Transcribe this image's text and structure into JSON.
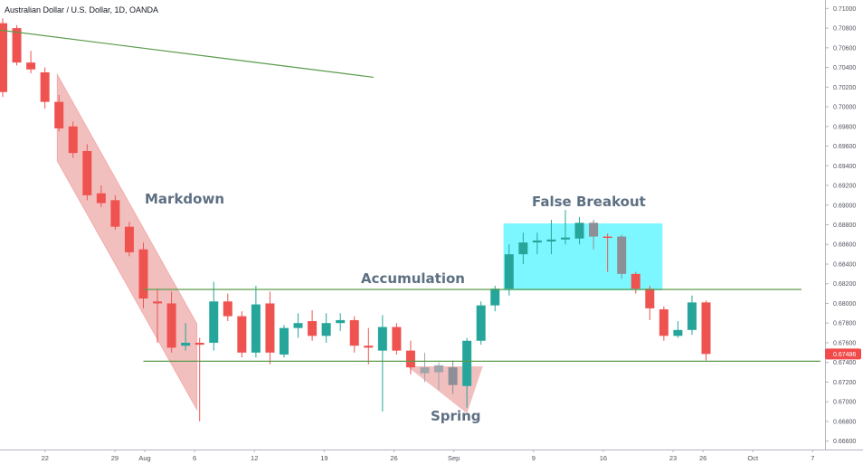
{
  "header": {
    "title": "Australian Dollar / U.S. Dollar, 1D, OANDA"
  },
  "chart_data": {
    "type": "candlestick",
    "title": "Australian Dollar / U.S. Dollar, 1D, OANDA",
    "ylim": [
      0.6656,
      0.7104
    ],
    "y_ticks": [
      "0.71000",
      "0.70800",
      "0.70600",
      "0.70400",
      "0.70200",
      "0.70000",
      "0.69800",
      "0.69600",
      "0.69400",
      "0.69200",
      "0.69000",
      "0.68800",
      "0.68600",
      "0.68400",
      "0.68200",
      "0.68000",
      "0.67800",
      "0.67600",
      "0.67400",
      "0.67200",
      "0.67000",
      "0.66800",
      "0.66600"
    ],
    "x_ticks": [
      {
        "label": "22",
        "day": -10
      },
      {
        "label": "29",
        "day": -3
      },
      {
        "label": "Aug",
        "day": 0
      },
      {
        "label": "6",
        "day": 5
      },
      {
        "label": "12",
        "day": 11
      },
      {
        "label": "19",
        "day": 18
      },
      {
        "label": "26",
        "day": 25
      },
      {
        "label": "Sep",
        "day": 31
      },
      {
        "label": "9",
        "day": 39
      },
      {
        "label": "16",
        "day": 46
      },
      {
        "label": "23",
        "day": 53
      },
      {
        "label": "26",
        "day": 56
      },
      {
        "label": "Oct",
        "day": 61
      },
      {
        "label": "7",
        "day": 67
      }
    ],
    "candles": [
      {
        "o": 0.7085,
        "h": 0.709,
        "l": 0.701,
        "c": 0.7015
      },
      {
        "o": 0.708,
        "h": 0.7083,
        "l": 0.7042,
        "c": 0.7045
      },
      {
        "o": 0.7045,
        "h": 0.7057,
        "l": 0.7034,
        "c": 0.7038
      },
      {
        "o": 0.7035,
        "h": 0.704,
        "l": 0.6998,
        "c": 0.7005
      },
      {
        "o": 0.7005,
        "h": 0.7012,
        "l": 0.6975,
        "c": 0.6978
      },
      {
        "o": 0.698,
        "h": 0.6985,
        "l": 0.6948,
        "c": 0.6953
      },
      {
        "o": 0.6955,
        "h": 0.6962,
        "l": 0.6905,
        "c": 0.691
      },
      {
        "o": 0.6912,
        "h": 0.692,
        "l": 0.6898,
        "c": 0.6902
      },
      {
        "o": 0.6905,
        "h": 0.691,
        "l": 0.6875,
        "c": 0.6878
      },
      {
        "o": 0.6878,
        "h": 0.6883,
        "l": 0.6848,
        "c": 0.6852
      },
      {
        "o": 0.6855,
        "h": 0.6862,
        "l": 0.6795,
        "c": 0.6805
      },
      {
        "o": 0.6802,
        "h": 0.6815,
        "l": 0.676,
        "c": 0.68
      },
      {
        "o": 0.68,
        "h": 0.6812,
        "l": 0.675,
        "c": 0.6755
      },
      {
        "o": 0.6757,
        "h": 0.678,
        "l": 0.6752,
        "c": 0.676
      },
      {
        "o": 0.676,
        "h": 0.6765,
        "l": 0.668,
        "c": 0.6758
      },
      {
        "o": 0.676,
        "h": 0.6822,
        "l": 0.6752,
        "c": 0.6802
      },
      {
        "o": 0.6802,
        "h": 0.681,
        "l": 0.6782,
        "c": 0.6787
      },
      {
        "o": 0.6787,
        "h": 0.6792,
        "l": 0.6745,
        "c": 0.675
      },
      {
        "o": 0.675,
        "h": 0.6818,
        "l": 0.6745,
        "c": 0.6799
      },
      {
        "o": 0.68,
        "h": 0.6812,
        "l": 0.6738,
        "c": 0.675
      },
      {
        "o": 0.6748,
        "h": 0.6778,
        "l": 0.6745,
        "c": 0.6775
      },
      {
        "o": 0.6775,
        "h": 0.679,
        "l": 0.6765,
        "c": 0.678
      },
      {
        "o": 0.6782,
        "h": 0.6793,
        "l": 0.6762,
        "c": 0.6767
      },
      {
        "o": 0.6767,
        "h": 0.679,
        "l": 0.676,
        "c": 0.678
      },
      {
        "o": 0.678,
        "h": 0.679,
        "l": 0.6772,
        "c": 0.6783
      },
      {
        "o": 0.6783,
        "h": 0.6787,
        "l": 0.675,
        "c": 0.6757
      },
      {
        "o": 0.6757,
        "h": 0.6775,
        "l": 0.6738,
        "c": 0.6755
      },
      {
        "o": 0.6752,
        "h": 0.6788,
        "l": 0.669,
        "c": 0.6776
      },
      {
        "o": 0.6776,
        "h": 0.678,
        "l": 0.6748,
        "c": 0.6752
      },
      {
        "o": 0.6752,
        "h": 0.6762,
        "l": 0.6728,
        "c": 0.6735
      },
      {
        "o": 0.6735,
        "h": 0.675,
        "l": 0.672,
        "c": 0.6729
      },
      {
        "o": 0.673,
        "h": 0.674,
        "l": 0.6712,
        "c": 0.6737
      },
      {
        "o": 0.6735,
        "h": 0.6742,
        "l": 0.6708,
        "c": 0.6717
      },
      {
        "o": 0.6716,
        "h": 0.6765,
        "l": 0.6694,
        "c": 0.6762
      },
      {
        "o": 0.6762,
        "h": 0.6802,
        "l": 0.6758,
        "c": 0.6798
      },
      {
        "o": 0.6798,
        "h": 0.6818,
        "l": 0.6792,
        "c": 0.6815
      },
      {
        "o": 0.6815,
        "h": 0.686,
        "l": 0.6808,
        "c": 0.685
      },
      {
        "o": 0.685,
        "h": 0.6872,
        "l": 0.684,
        "c": 0.6862
      },
      {
        "o": 0.6862,
        "h": 0.6872,
        "l": 0.685,
        "c": 0.6864
      },
      {
        "o": 0.6863,
        "h": 0.6885,
        "l": 0.685,
        "c": 0.6865
      },
      {
        "o": 0.6865,
        "h": 0.6895,
        "l": 0.686,
        "c": 0.6867
      },
      {
        "o": 0.6866,
        "h": 0.6888,
        "l": 0.686,
        "c": 0.6882
      },
      {
        "o": 0.6882,
        "h": 0.6885,
        "l": 0.6855,
        "c": 0.6868
      },
      {
        "o": 0.6868,
        "h": 0.6871,
        "l": 0.6832,
        "c": 0.6867
      },
      {
        "o": 0.6868,
        "h": 0.687,
        "l": 0.6825,
        "c": 0.683
      },
      {
        "o": 0.683,
        "h": 0.6832,
        "l": 0.681,
        "c": 0.6815
      },
      {
        "o": 0.6815,
        "h": 0.6818,
        "l": 0.6783,
        "c": 0.6795
      },
      {
        "o": 0.6794,
        "h": 0.6797,
        "l": 0.6762,
        "c": 0.6767
      },
      {
        "o": 0.6767,
        "h": 0.6782,
        "l": 0.6765,
        "c": 0.6773
      },
      {
        "o": 0.6773,
        "h": 0.6808,
        "l": 0.6768,
        "c": 0.6801
      },
      {
        "o": 0.6801,
        "h": 0.6803,
        "l": 0.6742,
        "c": 0.67486
      }
    ],
    "lines": [
      {
        "name": "resistance",
        "y": 0.68142
      },
      {
        "name": "support",
        "y": 0.67412
      },
      {
        "name": "trendline",
        "y_start": 0.7078,
        "y_end": 0.703
      }
    ],
    "annotations": [
      "Markdown",
      "Accumulation",
      "False Breakout",
      "Spring"
    ],
    "last_price": "0.67486",
    "colors": {
      "up": "#26a69a",
      "down": "#ef5350",
      "up_gray": "#a0a4ab",
      "down_gray": "#8c9096",
      "line": "#5b9a4a",
      "box": "#6ff6ff",
      "channel": "#eeaaaa",
      "price_tag": "#f24a4a"
    }
  }
}
